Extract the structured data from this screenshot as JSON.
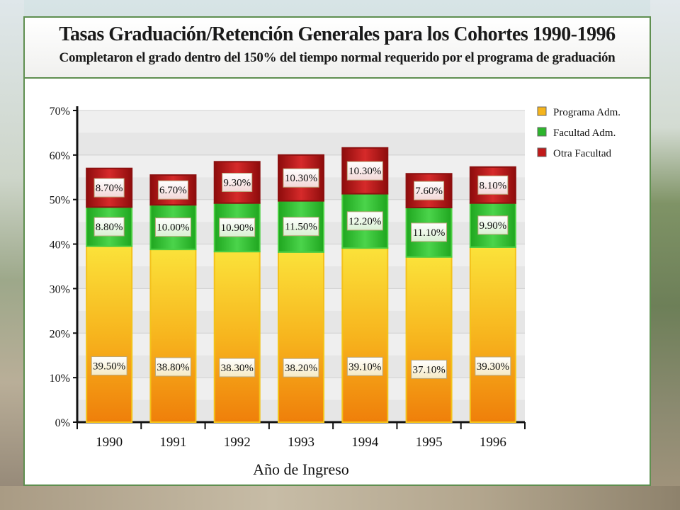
{
  "chart_data": {
    "type": "bar",
    "stacked": true,
    "title": "Tasas Graduación/Retención Generales para los Cohortes 1990-1996",
    "subtitle": "Completaron el grado dentro del 150% del tiempo normal requerido por el programa de graduación",
    "xlabel": "Año de Ingreso",
    "ylabel": "",
    "ylim": [
      0,
      70
    ],
    "yticks": [
      0,
      10,
      20,
      30,
      40,
      50,
      60,
      70
    ],
    "ytick_labels": [
      "0%",
      "10%",
      "20%",
      "30%",
      "40%",
      "50%",
      "60%",
      "70%"
    ],
    "grid": true,
    "legend_position": "top-right",
    "categories": [
      "1990",
      "1991",
      "1992",
      "1993",
      "1994",
      "1995",
      "1996"
    ],
    "series": [
      {
        "name": "Programa Adm.",
        "color": "#f5b41c",
        "values": [
          39.5,
          38.8,
          38.3,
          38.2,
          39.1,
          37.1,
          39.3
        ],
        "labels": [
          "39.50%",
          "38.80%",
          "38.30%",
          "38.20%",
          "39.10%",
          "37.10%",
          "39.30%"
        ]
      },
      {
        "name": "Facultad Adm.",
        "color": "#2cb52c",
        "values": [
          8.8,
          10.0,
          10.9,
          11.5,
          12.2,
          11.1,
          9.9
        ],
        "labels": [
          "8.80%",
          "10.00%",
          "10.90%",
          "11.50%",
          "12.20%",
          "11.10%",
          "9.90%"
        ]
      },
      {
        "name": "Otra Facultad",
        "color": "#c01a1a",
        "values": [
          8.7,
          6.7,
          9.3,
          10.3,
          10.3,
          7.6,
          8.1
        ],
        "labels": [
          "8.70%",
          "6.70%",
          "9.30%",
          "10.30%",
          "10.30%",
          "7.60%",
          "8.10%"
        ]
      }
    ]
  }
}
